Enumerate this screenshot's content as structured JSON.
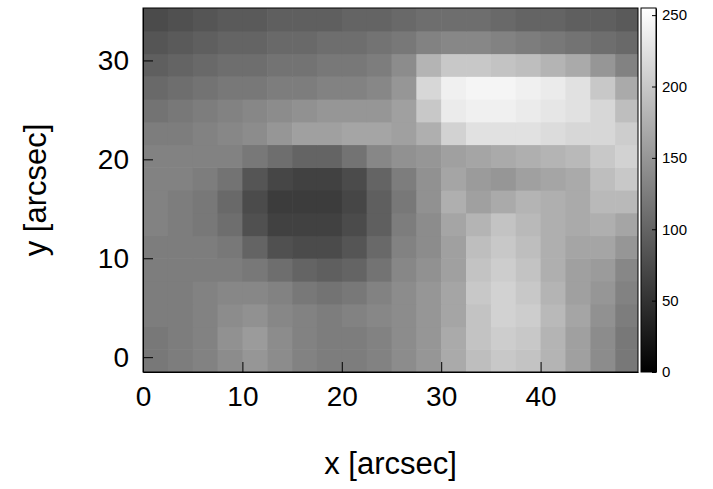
{
  "chart_data": {
    "type": "heatmap",
    "x_label": "x [arcsec]",
    "y_label": "y [arcsec]",
    "xlim": [
      0,
      49.8
    ],
    "ylim": [
      -1.5,
      35.3
    ],
    "xticks": [
      0,
      10,
      20,
      30,
      40
    ],
    "yticks": [
      0,
      10,
      20,
      30
    ],
    "x_edges": [
      0,
      2.5,
      5,
      7.5,
      10,
      12.5,
      15,
      17.5,
      20,
      22.5,
      25,
      27.5,
      30,
      32.5,
      35,
      37.5,
      40,
      42.5,
      45,
      47.5,
      50
    ],
    "y_edges": [
      -1.5,
      0.8,
      3.1,
      5.4,
      7.7,
      10.0,
      12.3,
      14.6,
      16.9,
      19.2,
      21.5,
      23.8,
      26.1,
      28.4,
      30.7,
      33.0,
      35.3
    ],
    "z": [
      [
        120,
        125,
        130,
        140,
        150,
        140,
        130,
        125,
        125,
        130,
        140,
        150,
        170,
        190,
        200,
        195,
        180,
        160,
        140,
        120
      ],
      [
        120,
        125,
        130,
        145,
        155,
        140,
        130,
        125,
        125,
        130,
        140,
        150,
        170,
        195,
        205,
        200,
        180,
        160,
        140,
        120
      ],
      [
        125,
        125,
        130,
        140,
        145,
        135,
        130,
        125,
        130,
        135,
        140,
        150,
        165,
        195,
        210,
        205,
        185,
        165,
        145,
        125
      ],
      [
        125,
        125,
        130,
        135,
        135,
        130,
        120,
        115,
        120,
        130,
        140,
        150,
        165,
        200,
        210,
        200,
        180,
        160,
        150,
        130
      ],
      [
        125,
        125,
        125,
        125,
        120,
        110,
        100,
        95,
        100,
        115,
        135,
        145,
        160,
        195,
        205,
        195,
        175,
        160,
        155,
        135
      ],
      [
        125,
        125,
        125,
        120,
        100,
        80,
        75,
        75,
        85,
        105,
        130,
        140,
        160,
        190,
        200,
        190,
        175,
        165,
        165,
        150
      ],
      [
        130,
        125,
        120,
        110,
        80,
        65,
        65,
        65,
        75,
        95,
        125,
        140,
        165,
        180,
        195,
        185,
        175,
        170,
        175,
        165
      ],
      [
        130,
        125,
        120,
        105,
        75,
        60,
        60,
        60,
        70,
        95,
        120,
        145,
        175,
        160,
        170,
        180,
        175,
        170,
        185,
        185
      ],
      [
        130,
        130,
        125,
        115,
        85,
        70,
        65,
        65,
        75,
        100,
        125,
        145,
        165,
        155,
        150,
        160,
        165,
        170,
        190,
        200
      ],
      [
        130,
        130,
        130,
        130,
        120,
        110,
        100,
        100,
        115,
        135,
        145,
        150,
        160,
        165,
        170,
        175,
        180,
        185,
        200,
        210
      ],
      [
        125,
        125,
        130,
        135,
        140,
        150,
        160,
        160,
        165,
        165,
        160,
        175,
        210,
        225,
        225,
        225,
        220,
        215,
        215,
        205
      ],
      [
        115,
        120,
        125,
        130,
        135,
        140,
        145,
        150,
        150,
        150,
        160,
        200,
        235,
        240,
        240,
        235,
        230,
        225,
        215,
        190
      ],
      [
        105,
        110,
        115,
        120,
        120,
        125,
        125,
        130,
        130,
        135,
        150,
        215,
        240,
        245,
        245,
        240,
        235,
        225,
        200,
        170
      ],
      [
        95,
        100,
        105,
        110,
        110,
        115,
        115,
        120,
        120,
        125,
        140,
        180,
        200,
        200,
        195,
        190,
        180,
        170,
        150,
        130
      ],
      [
        85,
        90,
        95,
        100,
        100,
        105,
        105,
        110,
        110,
        115,
        120,
        130,
        135,
        135,
        130,
        125,
        120,
        115,
        110,
        105
      ],
      [
        75,
        80,
        85,
        90,
        90,
        95,
        95,
        95,
        100,
        100,
        105,
        110,
        110,
        110,
        105,
        100,
        100,
        95,
        95,
        90
      ]
    ],
    "colorbar_range": [
      0,
      255
    ],
    "colorbar_ticks": [
      0,
      50,
      100,
      150,
      200,
      250
    ]
  }
}
